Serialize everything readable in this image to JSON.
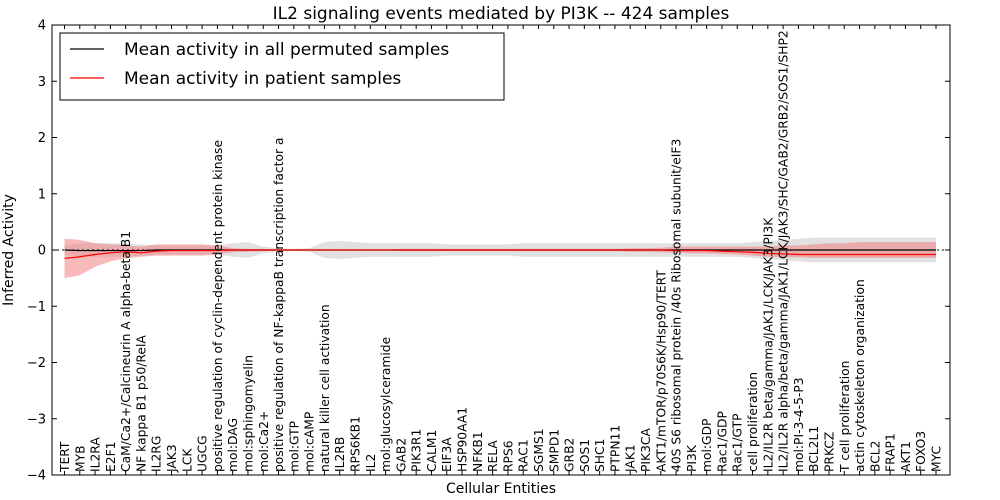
{
  "chart_data": {
    "type": "line",
    "title": "IL2 signaling events mediated by PI3K -- 424 samples",
    "xlabel": "Cellular Entities",
    "ylabel": "Inferred Activity",
    "ylim": [
      -4,
      4
    ],
    "yticks": [
      "4",
      "3",
      "2",
      "1",
      "0",
      "−1",
      "−2",
      "−3",
      "−4"
    ],
    "ytick_values": [
      4,
      3,
      2,
      1,
      0,
      -1,
      -2,
      -3,
      -4
    ],
    "grid": false,
    "legend_position": "top-left",
    "colors": {
      "permuted": "#000000",
      "patient": "#ff0000",
      "patient_band": "#f08080",
      "permuted_band": "#c8c8c8"
    },
    "categories": [
      "TERT",
      "MYB",
      "IL2RA",
      "E2F1",
      "CaM/Ca2+/Calcineurin A alpha-beta B1",
      "NF kappa B1 p50/RelA",
      "IL2RG",
      "JAK3",
      "LCK",
      "UGCG",
      "positive regulation of cyclin-dependent protein kinase",
      "mol:DAG",
      "mol:sphingomyelin",
      "mol:Ca2+",
      "positive regulation of NF-kappaB transcription factor a",
      "mol:GTP",
      "mol:cAMP",
      "natural killer cell activation",
      "IL2RB",
      "RPS6KB1",
      "IL2",
      "mol:glucosylceramide",
      "GAB2",
      "PIK3R1",
      "CALM1",
      "EIF3A",
      "HSP90AA1",
      "NFKB1",
      "RELA",
      "RPS6",
      "RAC1",
      "SGMS1",
      "SMPD1",
      "GRB2",
      "SOS1",
      "SHC1",
      "PTPN11",
      "JAK1",
      "PIK3CA",
      "AKT1/mTOR/p70S6K/Hsp90/TERT",
      "40S S6 ribosomal protein /40s Ribosomal subunit/eIF3",
      "PI3K",
      "mol:GDP",
      "Rac1/GDP",
      "Rac1/GTP",
      "cell proliferation",
      "IL2/IL2R beta/gamma/JAK1/LCK/JAK3/PI3K",
      "IL2/IL2R alpha/beta/gamma/JAK1/LCK/JAK3/SHC/GAB2/GRB2/SOS1/SHP2",
      "mol:PI-3-4-5-P3",
      "BCL2L1",
      "PRKCZ",
      "T cell proliferation",
      "actin cytoskeleton organization",
      "BCL2",
      "FRAP1",
      "AKT1",
      "FOXO3",
      "MYC"
    ],
    "series": [
      {
        "name": "Mean activity in all permuted samples",
        "values": [
          0,
          -0.01,
          -0.01,
          -0.01,
          -0.01,
          -0.01,
          0.0,
          0.0,
          0.0,
          0.0,
          0.0,
          0.0,
          0.0,
          0.0,
          0.0,
          0.0,
          0.0,
          0.0,
          0.0,
          0.0,
          0.0,
          0.0,
          0.0,
          0.0,
          0.0,
          0.0,
          0.0,
          0.0,
          0.0,
          0.0,
          0.0,
          0.0,
          0.0,
          0.0,
          0.0,
          0.0,
          0.0,
          0.0,
          0.0,
          0.0,
          0.0,
          0.0,
          0.0,
          0.0,
          0.0,
          0.0,
          0.0,
          0.0,
          0.0,
          0.0,
          0.0,
          0.0,
          0.0,
          0.0,
          0.0,
          0.0,
          0.0,
          0.0
        ],
        "lower": [
          -0.08,
          -0.12,
          -0.12,
          -0.12,
          -0.12,
          -0.1,
          -0.08,
          -0.08,
          -0.08,
          -0.08,
          -0.08,
          -0.12,
          -0.14,
          -0.06,
          -0.03,
          -0.02,
          -0.03,
          -0.14,
          -0.16,
          -0.14,
          -0.12,
          -0.12,
          -0.12,
          -0.12,
          -0.12,
          -0.1,
          -0.1,
          -0.1,
          -0.1,
          -0.1,
          -0.12,
          -0.12,
          -0.12,
          -0.12,
          -0.12,
          -0.12,
          -0.12,
          -0.12,
          -0.12,
          -0.12,
          -0.12,
          -0.12,
          -0.12,
          -0.12,
          -0.12,
          -0.14,
          -0.16,
          -0.18,
          -0.2,
          -0.22,
          -0.22,
          -0.22,
          -0.22,
          -0.22,
          -0.22,
          -0.22,
          -0.22,
          -0.22
        ],
        "upper": [
          0.08,
          0.12,
          0.12,
          0.12,
          0.12,
          0.1,
          0.08,
          0.08,
          0.08,
          0.08,
          0.08,
          0.12,
          0.14,
          0.06,
          0.03,
          0.02,
          0.03,
          0.14,
          0.16,
          0.14,
          0.12,
          0.12,
          0.12,
          0.12,
          0.12,
          0.1,
          0.1,
          0.1,
          0.1,
          0.1,
          0.12,
          0.12,
          0.12,
          0.12,
          0.12,
          0.12,
          0.12,
          0.12,
          0.12,
          0.12,
          0.12,
          0.12,
          0.12,
          0.12,
          0.12,
          0.14,
          0.16,
          0.18,
          0.2,
          0.22,
          0.22,
          0.22,
          0.22,
          0.22,
          0.22,
          0.22,
          0.22,
          0.22
        ]
      },
      {
        "name": "Mean activity in patient samples",
        "values": [
          -0.15,
          -0.12,
          -0.08,
          -0.05,
          -0.03,
          -0.05,
          -0.02,
          -0.01,
          -0.01,
          -0.01,
          -0.01,
          0.0,
          0.0,
          0.0,
          0.0,
          0.0,
          0.0,
          0.0,
          0.0,
          0.0,
          0.0,
          0.0,
          0.0,
          0.0,
          0.0,
          0.0,
          0.0,
          0.0,
          0.0,
          0.0,
          0.0,
          0.0,
          0.0,
          0.0,
          0.0,
          0.0,
          0.0,
          0.0,
          0.0,
          0.0,
          -0.01,
          -0.01,
          -0.01,
          -0.02,
          -0.03,
          -0.04,
          -0.06,
          -0.07,
          -0.08,
          -0.08,
          -0.08,
          -0.08,
          -0.08,
          -0.08,
          -0.08,
          -0.08,
          -0.08,
          -0.08
        ],
        "lower": [
          -0.5,
          -0.45,
          -0.3,
          -0.2,
          -0.15,
          -0.12,
          -0.1,
          -0.1,
          -0.1,
          -0.1,
          -0.08,
          -0.04,
          -0.03,
          -0.02,
          -0.01,
          -0.01,
          -0.01,
          -0.01,
          -0.01,
          -0.01,
          -0.01,
          -0.01,
          -0.02,
          -0.02,
          -0.02,
          -0.02,
          -0.02,
          -0.02,
          -0.02,
          -0.02,
          -0.02,
          -0.02,
          -0.02,
          -0.02,
          -0.02,
          -0.02,
          -0.02,
          -0.03,
          -0.03,
          -0.04,
          -0.05,
          -0.06,
          -0.06,
          -0.07,
          -0.08,
          -0.1,
          -0.12,
          -0.13,
          -0.13,
          -0.14,
          -0.14,
          -0.14,
          -0.14,
          -0.14,
          -0.14,
          -0.14,
          -0.14,
          -0.14
        ],
        "upper": [
          0.2,
          0.18,
          0.12,
          0.1,
          0.08,
          0.06,
          0.1,
          0.1,
          0.1,
          0.1,
          0.08,
          0.03,
          0.02,
          0.02,
          0.01,
          0.01,
          0.01,
          0.01,
          0.01,
          0.01,
          0.01,
          0.01,
          0.02,
          0.02,
          0.02,
          0.02,
          0.02,
          0.02,
          0.02,
          0.02,
          0.02,
          0.02,
          0.02,
          0.02,
          0.02,
          0.02,
          0.02,
          0.03,
          0.03,
          0.04,
          0.06,
          0.06,
          0.06,
          0.06,
          0.06,
          0.06,
          0.06,
          0.08,
          0.08,
          0.1,
          0.12,
          0.12,
          0.14,
          0.14,
          0.14,
          0.14,
          0.14,
          0.14
        ]
      }
    ]
  }
}
